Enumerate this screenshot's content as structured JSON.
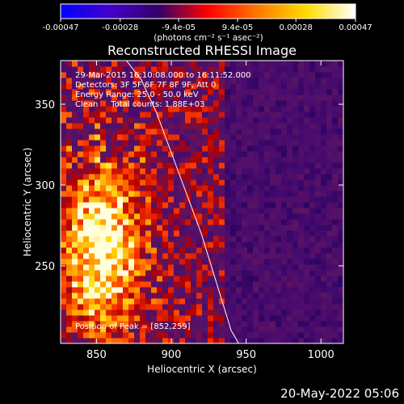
{
  "chart_data": {
    "type": "heatmap",
    "title": "Reconstructed RHESSI Image",
    "xlabel": "Heliocentric X (arcsec)",
    "ylabel": "Heliocentric Y (arcsec)",
    "xlim": [
      826,
      1015
    ],
    "ylim": [
      202,
      377
    ],
    "xticks": [
      850,
      900,
      950,
      1000
    ],
    "yticks": [
      250,
      300,
      350
    ],
    "colorbar": {
      "min": -0.00047,
      "max": 0.00047,
      "ticks": [
        -0.00047,
        -0.00028,
        -9.4e-05,
        9.4e-05,
        0.00028,
        0.00047
      ],
      "tick_labels": [
        "-0.00047",
        "-0.00028",
        "-9.4e-05",
        "9.4e-05",
        "0.00028",
        "0.00047"
      ],
      "unit_label": "(photons cm⁻² s⁻¹ asec⁻²)",
      "colormap": [
        "#0000ff",
        "#4400cc",
        "#330066",
        "#ff0000",
        "#ff7700",
        "#ffdd00",
        "#ffffff"
      ]
    },
    "annotations": [
      "29-Mar-2015 16:10:08.000 to 16:11:52.000",
      "Detectors: 3F 5F 6F 7F 8F 9F, Att 0",
      "Energy Range: 25.0 - 50.0 keV",
      "Clean     Total counts: 1.88E+03"
    ],
    "peak_label": "Position of Peak = [852,259]",
    "peak": [
      852,
      259
    ],
    "limb_curve": [
      [
        870,
        377
      ],
      [
        880,
        365
      ],
      [
        890,
        345
      ],
      [
        900,
        320
      ],
      [
        910,
        295
      ],
      [
        920,
        270
      ],
      [
        930,
        240
      ],
      [
        940,
        210
      ],
      [
        945,
        202
      ]
    ]
  },
  "footer_date": "20-May-2022 05:06"
}
